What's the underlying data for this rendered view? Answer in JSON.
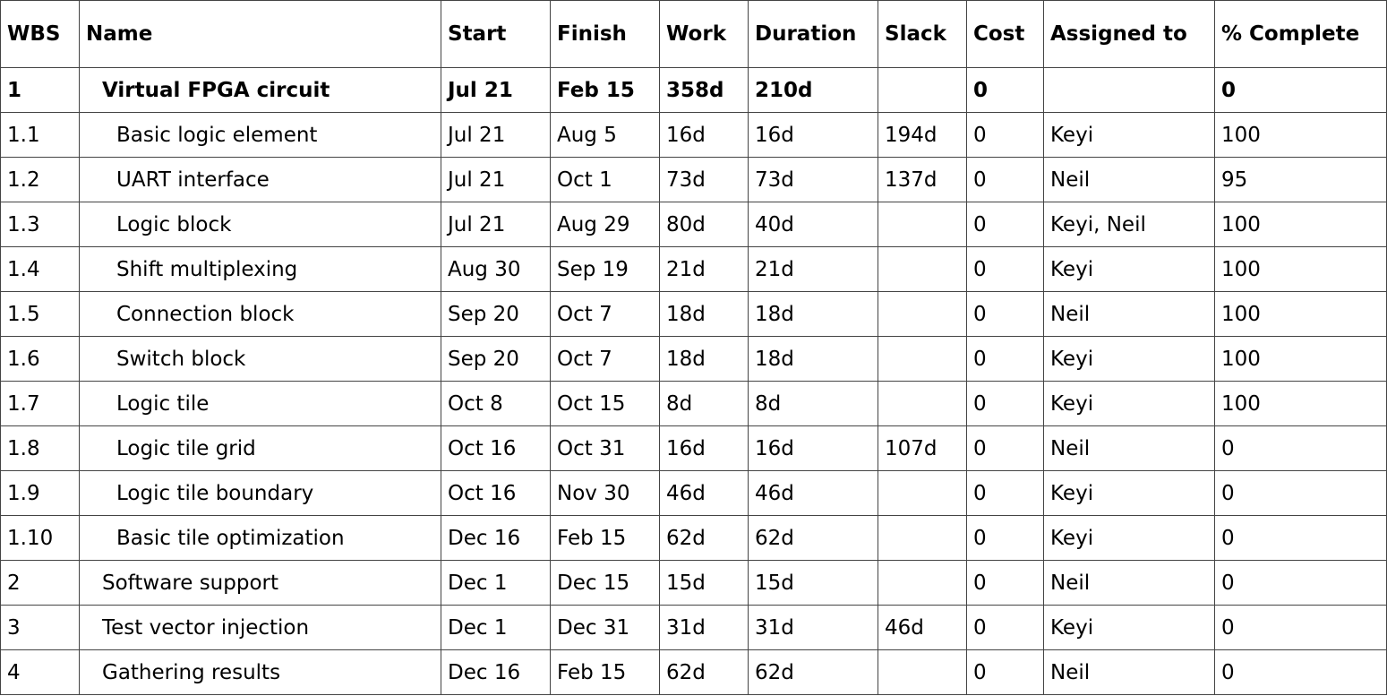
{
  "table": {
    "columns": [
      "WBS",
      "Name",
      "Start",
      "Finish",
      "Work",
      "Duration",
      "Slack",
      "Cost",
      "Assigned to",
      "% Complete"
    ],
    "rows": [
      {
        "wbs": "1",
        "name": "Virtual FPGA circuit",
        "level": 1,
        "summary": true,
        "start": "Jul 21",
        "finish": "Feb 15",
        "work": "358d",
        "duration": "210d",
        "slack": "",
        "cost": "0",
        "assigned": "",
        "complete": "0"
      },
      {
        "wbs": "1.1",
        "name": "Basic logic element",
        "level": 2,
        "summary": false,
        "start": "Jul 21",
        "finish": "Aug 5",
        "work": "16d",
        "duration": "16d",
        "slack": "194d",
        "cost": "0",
        "assigned": "Keyi",
        "complete": "100"
      },
      {
        "wbs": "1.2",
        "name": "UART interface",
        "level": 2,
        "summary": false,
        "start": "Jul 21",
        "finish": "Oct 1",
        "work": "73d",
        "duration": "73d",
        "slack": "137d",
        "cost": "0",
        "assigned": "Neil",
        "complete": "95"
      },
      {
        "wbs": "1.3",
        "name": "Logic block",
        "level": 2,
        "summary": false,
        "start": "Jul 21",
        "finish": "Aug 29",
        "work": "80d",
        "duration": "40d",
        "slack": "",
        "cost": "0",
        "assigned": "Keyi, Neil",
        "complete": "100"
      },
      {
        "wbs": "1.4",
        "name": "Shift multiplexing",
        "level": 2,
        "summary": false,
        "start": "Aug 30",
        "finish": "Sep 19",
        "work": "21d",
        "duration": "21d",
        "slack": "",
        "cost": "0",
        "assigned": "Keyi",
        "complete": "100"
      },
      {
        "wbs": "1.5",
        "name": "Connection block",
        "level": 2,
        "summary": false,
        "start": "Sep 20",
        "finish": "Oct 7",
        "work": "18d",
        "duration": "18d",
        "slack": "",
        "cost": "0",
        "assigned": "Neil",
        "complete": "100"
      },
      {
        "wbs": "1.6",
        "name": "Switch block",
        "level": 2,
        "summary": false,
        "start": "Sep 20",
        "finish": "Oct 7",
        "work": "18d",
        "duration": "18d",
        "slack": "",
        "cost": "0",
        "assigned": "Keyi",
        "complete": "100"
      },
      {
        "wbs": "1.7",
        "name": "Logic tile",
        "level": 2,
        "summary": false,
        "start": "Oct 8",
        "finish": "Oct 15",
        "work": "8d",
        "duration": "8d",
        "slack": "",
        "cost": "0",
        "assigned": "Keyi",
        "complete": "100"
      },
      {
        "wbs": "1.8",
        "name": "Logic tile grid",
        "level": 2,
        "summary": false,
        "start": "Oct 16",
        "finish": "Oct 31",
        "work": "16d",
        "duration": "16d",
        "slack": "107d",
        "cost": "0",
        "assigned": "Neil",
        "complete": "0"
      },
      {
        "wbs": "1.9",
        "name": "Logic tile boundary",
        "level": 2,
        "summary": false,
        "start": "Oct 16",
        "finish": "Nov 30",
        "work": "46d",
        "duration": "46d",
        "slack": "",
        "cost": "0",
        "assigned": "Keyi",
        "complete": "0"
      },
      {
        "wbs": "1.10",
        "name": "Basic tile optimization",
        "level": 2,
        "summary": false,
        "start": "Dec 16",
        "finish": "Feb 15",
        "work": "62d",
        "duration": "62d",
        "slack": "",
        "cost": "0",
        "assigned": "Keyi",
        "complete": "0"
      },
      {
        "wbs": "2",
        "name": "Software support",
        "level": 1,
        "summary": false,
        "start": "Dec 1",
        "finish": "Dec 15",
        "work": "15d",
        "duration": "15d",
        "slack": "",
        "cost": "0",
        "assigned": "Neil",
        "complete": "0"
      },
      {
        "wbs": "3",
        "name": "Test vector injection",
        "level": 1,
        "summary": false,
        "start": "Dec 1",
        "finish": "Dec 31",
        "work": "31d",
        "duration": "31d",
        "slack": "46d",
        "cost": "0",
        "assigned": "Keyi",
        "complete": "0"
      },
      {
        "wbs": "4",
        "name": "Gathering results",
        "level": 1,
        "summary": false,
        "start": "Dec 16",
        "finish": "Feb 15",
        "work": "62d",
        "duration": "62d",
        "slack": "",
        "cost": "0",
        "assigned": "Neil",
        "complete": "0"
      }
    ]
  }
}
